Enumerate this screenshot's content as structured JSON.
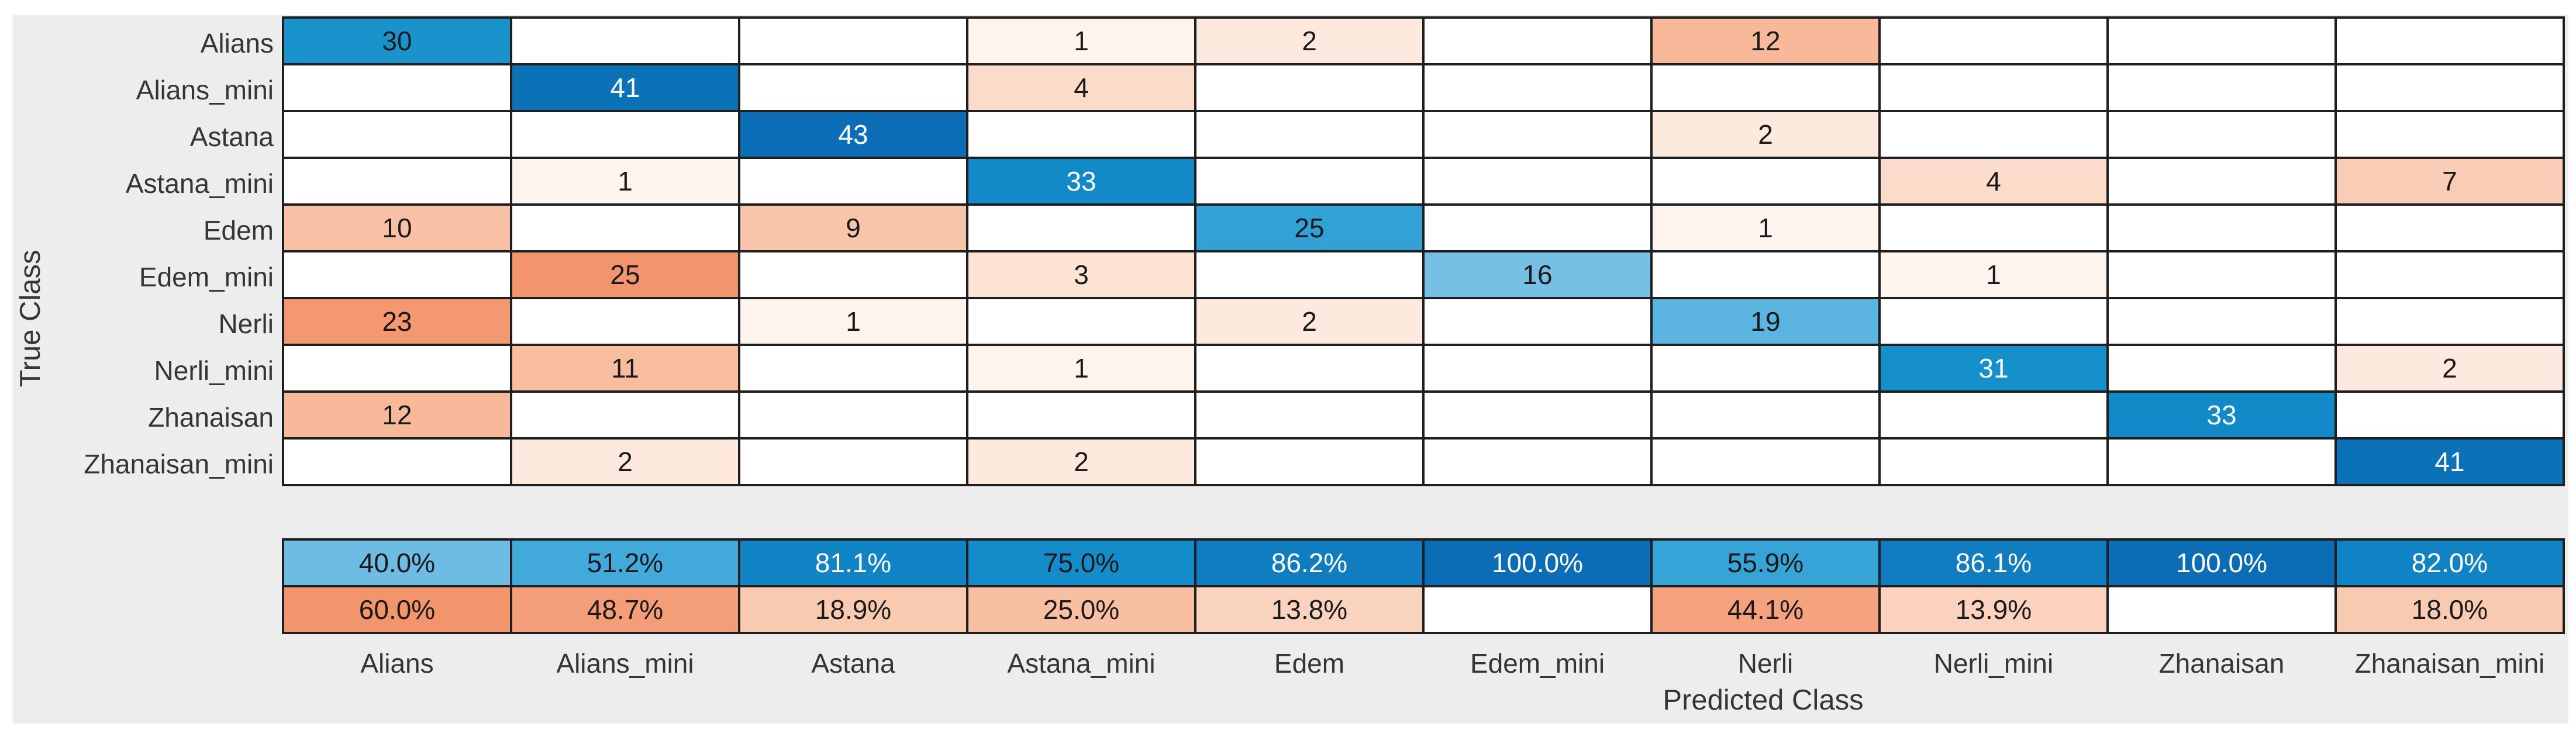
{
  "chart_data": {
    "type": "heatmap",
    "title": "",
    "xlabel": "Predicted Class",
    "ylabel": "True Class",
    "classes": [
      "Alians",
      "Alians_mini",
      "Astana",
      "Astana_mini",
      "Edem",
      "Edem_mini",
      "Nerli",
      "Nerli_mini",
      "Zhanaisan",
      "Zhanaisan_mini"
    ],
    "matrix": [
      [
        30,
        0,
        0,
        1,
        2,
        0,
        12,
        0,
        0,
        0
      ],
      [
        0,
        41,
        0,
        4,
        0,
        0,
        0,
        0,
        0,
        0
      ],
      [
        0,
        0,
        43,
        0,
        0,
        0,
        2,
        0,
        0,
        0
      ],
      [
        0,
        1,
        0,
        33,
        0,
        0,
        0,
        4,
        0,
        7
      ],
      [
        10,
        0,
        9,
        0,
        25,
        0,
        1,
        0,
        0,
        0
      ],
      [
        0,
        25,
        0,
        3,
        0,
        16,
        0,
        1,
        0,
        0
      ],
      [
        23,
        0,
        1,
        0,
        2,
        0,
        19,
        0,
        0,
        0
      ],
      [
        0,
        11,
        0,
        1,
        0,
        0,
        0,
        31,
        0,
        2
      ],
      [
        12,
        0,
        0,
        0,
        0,
        0,
        0,
        0,
        33,
        0
      ],
      [
        0,
        2,
        0,
        2,
        0,
        0,
        0,
        0,
        0,
        41
      ]
    ],
    "max_diagonal": 43,
    "max_off_diagonal": 25,
    "column_summary_correct_labels": [
      "40.0%",
      "51.2%",
      "81.1%",
      "75.0%",
      "86.2%",
      "100.0%",
      "55.9%",
      "86.1%",
      "100.0%",
      "82.0%"
    ],
    "column_summary_correct_pct": [
      40.0,
      51.2,
      81.1,
      75.0,
      86.2,
      100.0,
      55.9,
      86.1,
      100.0,
      82.0
    ],
    "column_summary_incorrect_labels": [
      "60.0%",
      "48.7%",
      "18.9%",
      "25.0%",
      "13.8%",
      "",
      "44.1%",
      "13.9%",
      "",
      "18.0%"
    ],
    "column_summary_incorrect_pct": [
      60.0,
      48.7,
      18.9,
      25.0,
      13.8,
      null,
      44.1,
      13.9,
      null,
      18.0
    ],
    "legend_position": "none",
    "grid": "on"
  },
  "style": {
    "panel_bg": "#ededed",
    "grid_line_color": "#1f1f1f",
    "label_color": "#353535",
    "cell_text_dark": "#1a1a1a",
    "cell_text_light": "#ffffff",
    "white_text_blue_threshold": 0.72,
    "white_text_summary_pct_threshold": 80,
    "incorrect_summary_norm": 60,
    "blue_stops": [
      [
        0,
        "#ffffff"
      ],
      [
        0.2,
        "#bfe0f1"
      ],
      [
        0.35,
        "#7fc4e7"
      ],
      [
        0.5,
        "#45abdb"
      ],
      [
        0.62,
        "#279cd3"
      ],
      [
        0.72,
        "#1690cb"
      ],
      [
        0.8,
        "#1186c6"
      ],
      [
        0.9,
        "#0d78bc"
      ],
      [
        1,
        "#0a6db5"
      ]
    ],
    "salmon_stops": [
      [
        0,
        "#ffffff"
      ],
      [
        0.08,
        "#fde9dd"
      ],
      [
        0.16,
        "#fbdccb"
      ],
      [
        0.28,
        "#f9ccb5"
      ],
      [
        0.4,
        "#f8c0a5"
      ],
      [
        0.5,
        "#f7b797"
      ],
      [
        0.62,
        "#f6ab89"
      ],
      [
        0.78,
        "#f4a07b"
      ],
      [
        1,
        "#f2946c"
      ]
    ]
  }
}
